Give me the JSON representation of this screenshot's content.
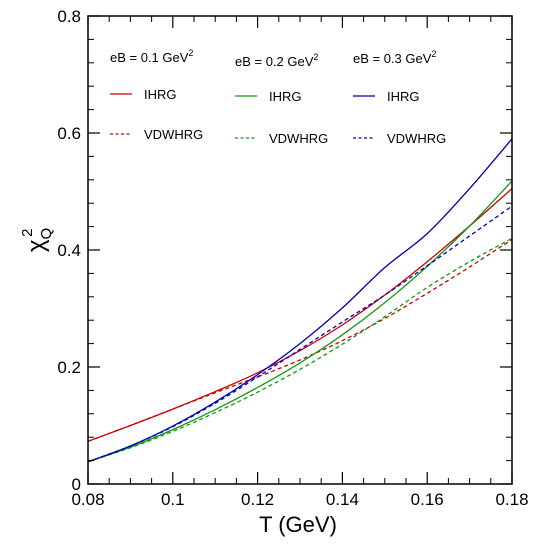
{
  "chart_data": {
    "type": "line",
    "xlabel": "T (GeV)",
    "ylabel": {
      "base": "χ",
      "sup": "2",
      "sub": "Q"
    },
    "xlim": [
      0.08,
      0.18
    ],
    "ylim": [
      0,
      0.8
    ],
    "xticks": [
      0.08,
      0.1,
      0.12,
      0.14,
      0.16,
      0.18
    ],
    "xtick_labels": [
      "0.08",
      "0.1",
      "0.12",
      "0.14",
      "0.16",
      "0.18"
    ],
    "yticks": [
      0,
      0.2,
      0.4,
      0.6,
      0.8
    ],
    "ytick_labels": [
      "0",
      "0.2",
      "0.4",
      "0.6",
      "0.8"
    ],
    "grid": false,
    "legend_placement": "top",
    "legend_headers": [
      {
        "text": "eB = 0.1 GeV",
        "sup": "2"
      },
      {
        "text": "eB = 0.2 GeV",
        "sup": "2"
      },
      {
        "text": "eB = 0.3 GeV",
        "sup": "2"
      }
    ],
    "x": [
      0.08,
      0.09,
      0.1,
      0.11,
      0.12,
      0.13,
      0.14,
      0.15,
      0.16,
      0.17,
      0.18
    ],
    "series": [
      {
        "name": "IHRG",
        "field": "eB = 0.1 GeV2",
        "color": "#cc0000",
        "dash": "solid",
        "values": [
          0.073,
          0.1,
          0.128,
          0.158,
          0.19,
          0.228,
          0.272,
          0.323,
          0.38,
          0.441,
          0.505
        ]
      },
      {
        "name": "VDWHRG",
        "field": "eB = 0.1 GeV2",
        "color": "#cc0000",
        "dash": "dashed",
        "values": [
          0.073,
          0.1,
          0.128,
          0.156,
          0.183,
          0.212,
          0.245,
          0.283,
          0.326,
          0.371,
          0.418
        ]
      },
      {
        "name": "IHRG",
        "field": "eB = 0.2 GeV2",
        "color": "#119911",
        "dash": "solid",
        "values": [
          0.038,
          0.063,
          0.093,
          0.127,
          0.165,
          0.207,
          0.255,
          0.31,
          0.372,
          0.441,
          0.518
        ]
      },
      {
        "name": "VDWHRG",
        "field": "eB = 0.2 GeV2",
        "color": "#119911",
        "dash": "dashed",
        "values": [
          0.038,
          0.062,
          0.09,
          0.122,
          0.157,
          0.196,
          0.239,
          0.286,
          0.336,
          0.38,
          0.42
        ]
      },
      {
        "name": "IHRG",
        "field": "eB = 0.3 GeV2",
        "color": "#0000bb",
        "dash": "solid",
        "values": [
          0.038,
          0.065,
          0.099,
          0.14,
          0.187,
          0.24,
          0.301,
          0.37,
          0.428,
          0.505,
          0.59
        ]
      },
      {
        "name": "VDWHRG",
        "field": "eB = 0.3 GeV2",
        "color": "#0000bb",
        "dash": "dashed",
        "values": [
          0.038,
          0.065,
          0.098,
          0.138,
          0.183,
          0.23,
          0.277,
          0.323,
          0.373,
          0.424,
          0.475
        ]
      }
    ]
  }
}
